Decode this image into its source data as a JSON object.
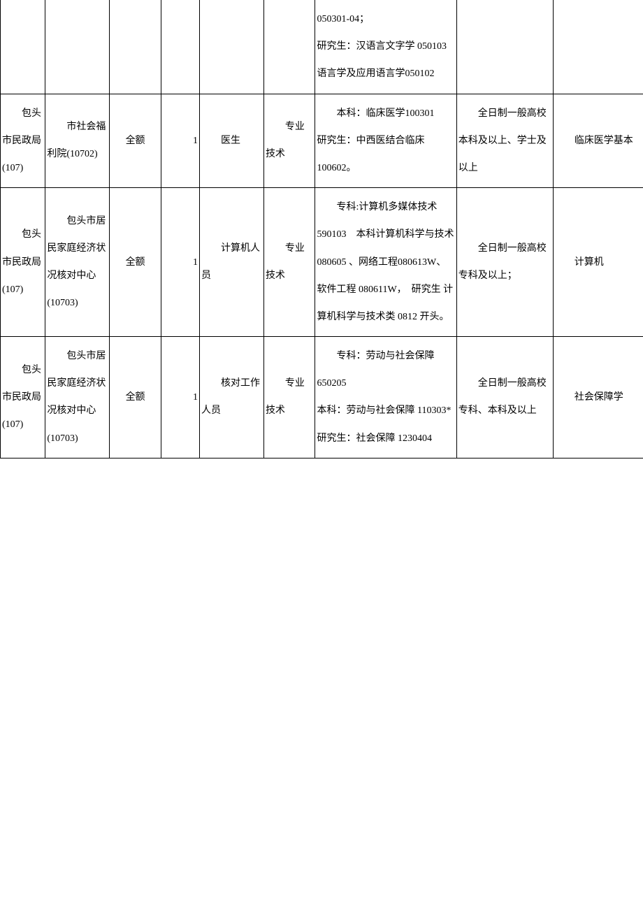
{
  "table": {
    "rows": [
      {
        "col1": "",
        "col2": "",
        "col3": "",
        "col4": "",
        "col5": "",
        "col6": "",
        "col7": "050301-04；\n研究生：汉语言文字学 050103\n语言学及应用语言学050102",
        "col8": "",
        "col9": ""
      },
      {
        "col1": "　　包头市民政局(107)",
        "col2": "　　市社会福利院(10702)",
        "col3": "全额",
        "col4": "1",
        "col5": "　　医生",
        "col6": "　　专业技术",
        "col7": "　　本科：临床医学100301\n研究生：中西医结合临床 100602。",
        "col8": "　　全日制一般高校本科及以上、学士及以上",
        "col9": "　　临床医学基本",
        "borderTop": true
      },
      {
        "col1": "　　包头市民政局(107)",
        "col2": "　　包头市居民家庭经济状况核对中心(10703)",
        "col3": "全额",
        "col4": "1",
        "col5": "　　计算机人员",
        "col6": "　　专业技术",
        "col7": "　　专科:计算机多媒体技术 590103　本科计算机科学与技术080605 、网络工程080613W、 软件工程 080611W，　研究生 计算机科学与技术类 0812 开头。",
        "col8": "　　全日制一般高校专科及以上；",
        "col9": "　　计算机",
        "borderTop": true
      },
      {
        "col1": "　　包头市民政局(107)",
        "col2": "　　包头市居民家庭经济状况核对中心(10703)",
        "col3": "全额",
        "col4": "1",
        "col5": "　　核对工作人员",
        "col6": "　　专业技术",
        "col7": "　　专科：劳动与社会保障 650205\n本科：劳动与社会保障 110303* 研究生：社会保障 1230404",
        "col8": "　　全日制一般高校专科、本科及以上",
        "col9": "　　社会保障学",
        "borderTop": true
      }
    ]
  },
  "styling": {
    "border_color": "#000000",
    "background_color": "#ffffff",
    "text_color": "#000000",
    "font_size": 14,
    "line_height": 2.8
  }
}
